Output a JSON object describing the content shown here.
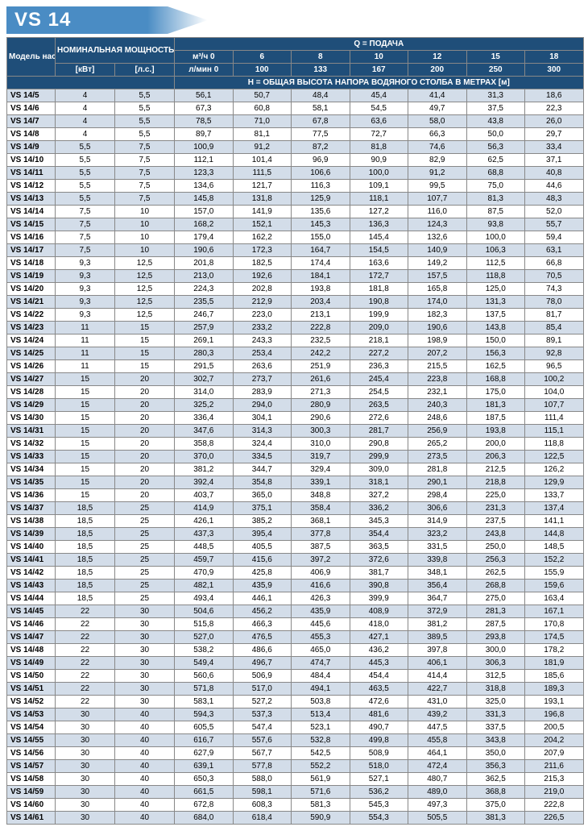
{
  "title": "VS 14",
  "headers": {
    "model": "Модель насоса",
    "power": "НОМИНАЛЬНАЯ МОЩНОСТЬ",
    "q_delivery": "Q = ПОДАЧА",
    "m3h": "м³/ч 0",
    "lmin": "л/мин 0",
    "kw": "[кВт]",
    "hp": "[л.с.]",
    "head": "H = ОБЩАЯ ВЫСОТА НАПОРА ВОДЯНОГО СТОЛБА В МЕТРАХ [м]"
  },
  "flow_m3h": [
    "6",
    "8",
    "10",
    "12",
    "15",
    "18"
  ],
  "flow_lmin": [
    "100",
    "133",
    "167",
    "200",
    "250",
    "300"
  ],
  "colors": {
    "header_bg": "#1f4e79",
    "header_fg": "#ffffff",
    "row_even": "#d3dde9",
    "row_odd": "#ffffff",
    "banner_bg": "#4a8cc4"
  },
  "rows": [
    {
      "m": "VS 14/5",
      "kw": "4",
      "hp": "5,5",
      "v": [
        "56,1",
        "50,7",
        "48,4",
        "45,4",
        "41,4",
        "31,3",
        "18,6"
      ]
    },
    {
      "m": "VS 14/6",
      "kw": "4",
      "hp": "5,5",
      "v": [
        "67,3",
        "60,8",
        "58,1",
        "54,5",
        "49,7",
        "37,5",
        "22,3"
      ]
    },
    {
      "m": "VS 14/7",
      "kw": "4",
      "hp": "5,5",
      "v": [
        "78,5",
        "71,0",
        "67,8",
        "63,6",
        "58,0",
        "43,8",
        "26,0"
      ]
    },
    {
      "m": "VS 14/8",
      "kw": "4",
      "hp": "5,5",
      "v": [
        "89,7",
        "81,1",
        "77,5",
        "72,7",
        "66,3",
        "50,0",
        "29,7"
      ]
    },
    {
      "m": "VS 14/9",
      "kw": "5,5",
      "hp": "7,5",
      "v": [
        "100,9",
        "91,2",
        "87,2",
        "81,8",
        "74,6",
        "56,3",
        "33,4"
      ]
    },
    {
      "m": "VS 14/10",
      "kw": "5,5",
      "hp": "7,5",
      "v": [
        "112,1",
        "101,4",
        "96,9",
        "90,9",
        "82,9",
        "62,5",
        "37,1"
      ]
    },
    {
      "m": "VS 14/11",
      "kw": "5,5",
      "hp": "7,5",
      "v": [
        "123,3",
        "111,5",
        "106,6",
        "100,0",
        "91,2",
        "68,8",
        "40,8"
      ]
    },
    {
      "m": "VS 14/12",
      "kw": "5,5",
      "hp": "7,5",
      "v": [
        "134,6",
        "121,7",
        "116,3",
        "109,1",
        "99,5",
        "75,0",
        "44,6"
      ]
    },
    {
      "m": "VS 14/13",
      "kw": "5,5",
      "hp": "7,5",
      "v": [
        "145,8",
        "131,8",
        "125,9",
        "118,1",
        "107,7",
        "81,3",
        "48,3"
      ]
    },
    {
      "m": "VS 14/14",
      "kw": "7,5",
      "hp": "10",
      "v": [
        "157,0",
        "141,9",
        "135,6",
        "127,2",
        "116,0",
        "87,5",
        "52,0"
      ]
    },
    {
      "m": "VS 14/15",
      "kw": "7,5",
      "hp": "10",
      "v": [
        "168,2",
        "152,1",
        "145,3",
        "136,3",
        "124,3",
        "93,8",
        "55,7"
      ]
    },
    {
      "m": "VS 14/16",
      "kw": "7,5",
      "hp": "10",
      "v": [
        "179,4",
        "162,2",
        "155,0",
        "145,4",
        "132,6",
        "100,0",
        "59,4"
      ]
    },
    {
      "m": "VS 14/17",
      "kw": "7,5",
      "hp": "10",
      "v": [
        "190,6",
        "172,3",
        "164,7",
        "154,5",
        "140,9",
        "106,3",
        "63,1"
      ]
    },
    {
      "m": "VS 14/18",
      "kw": "9,3",
      "hp": "12,5",
      "v": [
        "201,8",
        "182,5",
        "174,4",
        "163,6",
        "149,2",
        "112,5",
        "66,8"
      ]
    },
    {
      "m": "VS 14/19",
      "kw": "9,3",
      "hp": "12,5",
      "v": [
        "213,0",
        "192,6",
        "184,1",
        "172,7",
        "157,5",
        "118,8",
        "70,5"
      ]
    },
    {
      "m": "VS 14/20",
      "kw": "9,3",
      "hp": "12,5",
      "v": [
        "224,3",
        "202,8",
        "193,8",
        "181,8",
        "165,8",
        "125,0",
        "74,3"
      ]
    },
    {
      "m": "VS 14/21",
      "kw": "9,3",
      "hp": "12,5",
      "v": [
        "235,5",
        "212,9",
        "203,4",
        "190,8",
        "174,0",
        "131,3",
        "78,0"
      ]
    },
    {
      "m": "VS 14/22",
      "kw": "9,3",
      "hp": "12,5",
      "v": [
        "246,7",
        "223,0",
        "213,1",
        "199,9",
        "182,3",
        "137,5",
        "81,7"
      ]
    },
    {
      "m": "VS 14/23",
      "kw": "11",
      "hp": "15",
      "v": [
        "257,9",
        "233,2",
        "222,8",
        "209,0",
        "190,6",
        "143,8",
        "85,4"
      ]
    },
    {
      "m": "VS 14/24",
      "kw": "11",
      "hp": "15",
      "v": [
        "269,1",
        "243,3",
        "232,5",
        "218,1",
        "198,9",
        "150,0",
        "89,1"
      ]
    },
    {
      "m": "VS 14/25",
      "kw": "11",
      "hp": "15",
      "v": [
        "280,3",
        "253,4",
        "242,2",
        "227,2",
        "207,2",
        "156,3",
        "92,8"
      ]
    },
    {
      "m": "VS 14/26",
      "kw": "11",
      "hp": "15",
      "v": [
        "291,5",
        "263,6",
        "251,9",
        "236,3",
        "215,5",
        "162,5",
        "96,5"
      ]
    },
    {
      "m": "VS 14/27",
      "kw": "15",
      "hp": "20",
      "v": [
        "302,7",
        "273,7",
        "261,6",
        "245,4",
        "223,8",
        "168,8",
        "100,2"
      ]
    },
    {
      "m": "VS 14/28",
      "kw": "15",
      "hp": "20",
      "v": [
        "314,0",
        "283,9",
        "271,3",
        "254,5",
        "232,1",
        "175,0",
        "104,0"
      ]
    },
    {
      "m": "VS 14/29",
      "kw": "15",
      "hp": "20",
      "v": [
        "325,2",
        "294,0",
        "280,9",
        "263,5",
        "240,3",
        "181,3",
        "107,7"
      ]
    },
    {
      "m": "VS 14/30",
      "kw": "15",
      "hp": "20",
      "v": [
        "336,4",
        "304,1",
        "290,6",
        "272,6",
        "248,6",
        "187,5",
        "111,4"
      ]
    },
    {
      "m": "VS 14/31",
      "kw": "15",
      "hp": "20",
      "v": [
        "347,6",
        "314,3",
        "300,3",
        "281,7",
        "256,9",
        "193,8",
        "115,1"
      ]
    },
    {
      "m": "VS 14/32",
      "kw": "15",
      "hp": "20",
      "v": [
        "358,8",
        "324,4",
        "310,0",
        "290,8",
        "265,2",
        "200,0",
        "118,8"
      ]
    },
    {
      "m": "VS 14/33",
      "kw": "15",
      "hp": "20",
      "v": [
        "370,0",
        "334,5",
        "319,7",
        "299,9",
        "273,5",
        "206,3",
        "122,5"
      ]
    },
    {
      "m": "VS 14/34",
      "kw": "15",
      "hp": "20",
      "v": [
        "381,2",
        "344,7",
        "329,4",
        "309,0",
        "281,8",
        "212,5",
        "126,2"
      ]
    },
    {
      "m": "VS 14/35",
      "kw": "15",
      "hp": "20",
      "v": [
        "392,4",
        "354,8",
        "339,1",
        "318,1",
        "290,1",
        "218,8",
        "129,9"
      ]
    },
    {
      "m": "VS 14/36",
      "kw": "15",
      "hp": "20",
      "v": [
        "403,7",
        "365,0",
        "348,8",
        "327,2",
        "298,4",
        "225,0",
        "133,7"
      ]
    },
    {
      "m": "VS 14/37",
      "kw": "18,5",
      "hp": "25",
      "v": [
        "414,9",
        "375,1",
        "358,4",
        "336,2",
        "306,6",
        "231,3",
        "137,4"
      ]
    },
    {
      "m": "VS 14/38",
      "kw": "18,5",
      "hp": "25",
      "v": [
        "426,1",
        "385,2",
        "368,1",
        "345,3",
        "314,9",
        "237,5",
        "141,1"
      ]
    },
    {
      "m": "VS 14/39",
      "kw": "18,5",
      "hp": "25",
      "v": [
        "437,3",
        "395,4",
        "377,8",
        "354,4",
        "323,2",
        "243,8",
        "144,8"
      ]
    },
    {
      "m": "VS 14/40",
      "kw": "18,5",
      "hp": "25",
      "v": [
        "448,5",
        "405,5",
        "387,5",
        "363,5",
        "331,5",
        "250,0",
        "148,5"
      ]
    },
    {
      "m": "VS 14/41",
      "kw": "18,5",
      "hp": "25",
      "v": [
        "459,7",
        "415,6",
        "397,2",
        "372,6",
        "339,8",
        "256,3",
        "152,2"
      ]
    },
    {
      "m": "VS 14/42",
      "kw": "18,5",
      "hp": "25",
      "v": [
        "470,9",
        "425,8",
        "406,9",
        "381,7",
        "348,1",
        "262,5",
        "155,9"
      ]
    },
    {
      "m": "VS 14/43",
      "kw": "18,5",
      "hp": "25",
      "v": [
        "482,1",
        "435,9",
        "416,6",
        "390,8",
        "356,4",
        "268,8",
        "159,6"
      ]
    },
    {
      "m": "VS 14/44",
      "kw": "18,5",
      "hp": "25",
      "v": [
        "493,4",
        "446,1",
        "426,3",
        "399,9",
        "364,7",
        "275,0",
        "163,4"
      ]
    },
    {
      "m": "VS 14/45",
      "kw": "22",
      "hp": "30",
      "v": [
        "504,6",
        "456,2",
        "435,9",
        "408,9",
        "372,9",
        "281,3",
        "167,1"
      ]
    },
    {
      "m": "VS 14/46",
      "kw": "22",
      "hp": "30",
      "v": [
        "515,8",
        "466,3",
        "445,6",
        "418,0",
        "381,2",
        "287,5",
        "170,8"
      ]
    },
    {
      "m": "VS 14/47",
      "kw": "22",
      "hp": "30",
      "v": [
        "527,0",
        "476,5",
        "455,3",
        "427,1",
        "389,5",
        "293,8",
        "174,5"
      ]
    },
    {
      "m": "VS 14/48",
      "kw": "22",
      "hp": "30",
      "v": [
        "538,2",
        "486,6",
        "465,0",
        "436,2",
        "397,8",
        "300,0",
        "178,2"
      ]
    },
    {
      "m": "VS 14/49",
      "kw": "22",
      "hp": "30",
      "v": [
        "549,4",
        "496,7",
        "474,7",
        "445,3",
        "406,1",
        "306,3",
        "181,9"
      ]
    },
    {
      "m": "VS 14/50",
      "kw": "22",
      "hp": "30",
      "v": [
        "560,6",
        "506,9",
        "484,4",
        "454,4",
        "414,4",
        "312,5",
        "185,6"
      ]
    },
    {
      "m": "VS 14/51",
      "kw": "22",
      "hp": "30",
      "v": [
        "571,8",
        "517,0",
        "494,1",
        "463,5",
        "422,7",
        "318,8",
        "189,3"
      ]
    },
    {
      "m": "VS 14/52",
      "kw": "22",
      "hp": "30",
      "v": [
        "583,1",
        "527,2",
        "503,8",
        "472,6",
        "431,0",
        "325,0",
        "193,1"
      ]
    },
    {
      "m": "VS 14/53",
      "kw": "30",
      "hp": "40",
      "v": [
        "594,3",
        "537,3",
        "513,4",
        "481,6",
        "439,2",
        "331,3",
        "196,8"
      ]
    },
    {
      "m": "VS 14/54",
      "kw": "30",
      "hp": "40",
      "v": [
        "605,5",
        "547,4",
        "523,1",
        "490,7",
        "447,5",
        "337,5",
        "200,5"
      ]
    },
    {
      "m": "VS 14/55",
      "kw": "30",
      "hp": "40",
      "v": [
        "616,7",
        "557,6",
        "532,8",
        "499,8",
        "455,8",
        "343,8",
        "204,2"
      ]
    },
    {
      "m": "VS 14/56",
      "kw": "30",
      "hp": "40",
      "v": [
        "627,9",
        "567,7",
        "542,5",
        "508,9",
        "464,1",
        "350,0",
        "207,9"
      ]
    },
    {
      "m": "VS 14/57",
      "kw": "30",
      "hp": "40",
      "v": [
        "639,1",
        "577,8",
        "552,2",
        "518,0",
        "472,4",
        "356,3",
        "211,6"
      ]
    },
    {
      "m": "VS 14/58",
      "kw": "30",
      "hp": "40",
      "v": [
        "650,3",
        "588,0",
        "561,9",
        "527,1",
        "480,7",
        "362,5",
        "215,3"
      ]
    },
    {
      "m": "VS 14/59",
      "kw": "30",
      "hp": "40",
      "v": [
        "661,5",
        "598,1",
        "571,6",
        "536,2",
        "489,0",
        "368,8",
        "219,0"
      ]
    },
    {
      "m": "VS 14/60",
      "kw": "30",
      "hp": "40",
      "v": [
        "672,8",
        "608,3",
        "581,3",
        "545,3",
        "497,3",
        "375,0",
        "222,8"
      ]
    },
    {
      "m": "VS 14/61",
      "kw": "30",
      "hp": "40",
      "v": [
        "684,0",
        "618,4",
        "590,9",
        "554,3",
        "505,5",
        "381,3",
        "226,5"
      ]
    }
  ]
}
